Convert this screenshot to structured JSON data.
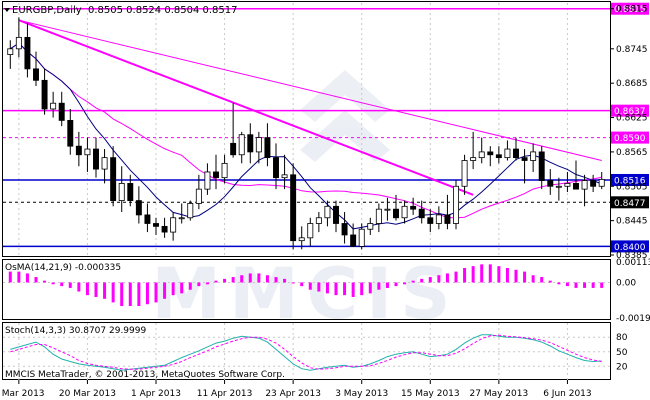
{
  "window": {
    "symbol_label": "EURGBP,Daily",
    "ohlc": "0.8505 0.8524 0.8504 0.8517",
    "copyright": "MMCIS MetaTrader, © 2001-2013, MetaQuotes Software Corp.",
    "watermark": "MMCIS"
  },
  "main_axis": {
    "ticks": [
      "0.8815",
      "0.8745",
      "0.8685",
      "0.8625",
      "0.8565",
      "0.8505",
      "0.8445",
      "0.8385"
    ],
    "levels": [
      {
        "value": "0.8815",
        "color": "#ff00ff",
        "style": "solid"
      },
      {
        "value": "0.8637",
        "color": "#ff00ff",
        "style": "solid"
      },
      {
        "value": "0.8590",
        "color": "#ff00ff",
        "style": "dashed"
      },
      {
        "value": "0.8516",
        "color": "#0000cc",
        "style": "solid"
      },
      {
        "value": "0.8477",
        "color": "#000000",
        "style": "dashed"
      },
      {
        "value": "0.8400",
        "color": "#0000cc",
        "style": "solid"
      }
    ]
  },
  "osma": {
    "label": "OsMA(14,21,9) -0.000335",
    "ticks": [
      "0.00113",
      "0.00",
      "-0.00196"
    ]
  },
  "stoch": {
    "label": "Stoch(14,3,3) 30.8707 29.9999",
    "ticks": [
      "80",
      "50",
      "20"
    ]
  },
  "x_axis": {
    "labels": [
      "8 Mar 2013",
      "20 Mar 2013",
      "1 Apr 2013",
      "11 Apr 2013",
      "23 Apr 2013",
      "3 May 2013",
      "15 May 2013",
      "27 May 2013",
      "6 Jun 2013"
    ]
  },
  "colors": {
    "bull": "#ffffff",
    "bear": "#000000",
    "ma_fast": "#000080",
    "ma_slow": "#ff00ff",
    "trendline": "#ff00ff",
    "osma": "#ff00ff",
    "stoch_main": "#20b2aa",
    "stoch_signal": "#ff00ff"
  },
  "chart_data": [
    {
      "type": "candlestick",
      "title": "EURGBP,Daily",
      "x": [
        "7 Mar",
        "8 Mar",
        "11 Mar",
        "12 Mar",
        "13 Mar",
        "14 Mar",
        "15 Mar",
        "18 Mar",
        "19 Mar",
        "20 Mar",
        "21 Mar",
        "22 Mar",
        "25 Mar",
        "26 Mar",
        "27 Mar",
        "28 Mar",
        "29 Mar",
        "1 Apr",
        "2 Apr",
        "3 Apr",
        "4 Apr",
        "5 Apr",
        "8 Apr",
        "9 Apr",
        "10 Apr",
        "11 Apr",
        "12 Apr",
        "15 Apr",
        "16 Apr",
        "17 Apr",
        "18 Apr",
        "19 Apr",
        "22 Apr",
        "23 Apr",
        "24 Apr",
        "25 Apr",
        "26 Apr",
        "29 Apr",
        "30 Apr",
        "1 May",
        "2 May",
        "3 May",
        "6 May",
        "7 May",
        "8 May",
        "9 May",
        "10 May",
        "13 May",
        "14 May",
        "15 May",
        "16 May",
        "17 May",
        "20 May",
        "21 May",
        "22 May",
        "23 May",
        "24 May",
        "27 May",
        "28 May",
        "29 May",
        "30 May",
        "31 May",
        "3 Jun",
        "4 Jun",
        "5 Jun",
        "6 Jun",
        "7 Jun",
        "10 Jun",
        "11 Jun",
        "12 Jun"
      ],
      "open": [
        0.8735,
        0.8745,
        0.8765,
        0.871,
        0.869,
        0.864,
        0.865,
        0.862,
        0.8575,
        0.856,
        0.857,
        0.8535,
        0.8555,
        0.848,
        0.851,
        0.848,
        0.8455,
        0.844,
        0.8435,
        0.8425,
        0.845,
        0.845,
        0.8475,
        0.85,
        0.853,
        0.852,
        0.858,
        0.856,
        0.8595,
        0.8565,
        0.859,
        0.8555,
        0.852,
        0.8525,
        0.841,
        0.8415,
        0.844,
        0.845,
        0.847,
        0.844,
        0.842,
        0.84,
        0.843,
        0.844,
        0.8465,
        0.8465,
        0.845,
        0.847,
        0.8465,
        0.845,
        0.844,
        0.8455,
        0.844,
        0.8505,
        0.855,
        0.8555,
        0.8565,
        0.856,
        0.8555,
        0.857,
        0.8555,
        0.855,
        0.8565,
        0.8515,
        0.8505,
        0.8505,
        0.851,
        0.85,
        0.8515,
        0.8505
      ],
      "high": [
        0.876,
        0.88,
        0.879,
        0.874,
        0.871,
        0.867,
        0.867,
        0.864,
        0.86,
        0.859,
        0.859,
        0.857,
        0.8575,
        0.854,
        0.8525,
        0.8505,
        0.8475,
        0.845,
        0.845,
        0.846,
        0.8475,
        0.848,
        0.8525,
        0.8545,
        0.856,
        0.856,
        0.865,
        0.86,
        0.8615,
        0.86,
        0.8615,
        0.858,
        0.856,
        0.8545,
        0.8435,
        0.845,
        0.846,
        0.848,
        0.848,
        0.846,
        0.844,
        0.844,
        0.845,
        0.8475,
        0.8485,
        0.849,
        0.848,
        0.8485,
        0.848,
        0.8465,
        0.847,
        0.849,
        0.8515,
        0.856,
        0.86,
        0.859,
        0.8575,
        0.8575,
        0.8585,
        0.859,
        0.857,
        0.858,
        0.8575,
        0.8535,
        0.852,
        0.853,
        0.855,
        0.8525,
        0.8525,
        0.853
      ],
      "low": [
        0.871,
        0.873,
        0.8695,
        0.868,
        0.863,
        0.8625,
        0.861,
        0.856,
        0.854,
        0.853,
        0.852,
        0.851,
        0.847,
        0.846,
        0.847,
        0.844,
        0.8425,
        0.842,
        0.8415,
        0.841,
        0.844,
        0.8445,
        0.8465,
        0.849,
        0.85,
        0.851,
        0.8555,
        0.8545,
        0.8545,
        0.8545,
        0.854,
        0.85,
        0.85,
        0.8395,
        0.8395,
        0.84,
        0.8425,
        0.8435,
        0.8425,
        0.8405,
        0.84,
        0.8395,
        0.842,
        0.8425,
        0.8445,
        0.8445,
        0.844,
        0.8455,
        0.844,
        0.8425,
        0.843,
        0.843,
        0.843,
        0.849,
        0.8535,
        0.8545,
        0.854,
        0.8545,
        0.855,
        0.855,
        0.851,
        0.853,
        0.85,
        0.849,
        0.848,
        0.8495,
        0.85,
        0.847,
        0.8495,
        0.85
      ],
      "close": [
        0.8745,
        0.8765,
        0.871,
        0.869,
        0.864,
        0.865,
        0.862,
        0.8575,
        0.856,
        0.857,
        0.8535,
        0.8555,
        0.848,
        0.851,
        0.848,
        0.8455,
        0.844,
        0.8435,
        0.8425,
        0.845,
        0.845,
        0.8475,
        0.85,
        0.853,
        0.852,
        0.8545,
        0.856,
        0.8595,
        0.8565,
        0.859,
        0.8555,
        0.852,
        0.8525,
        0.841,
        0.8415,
        0.844,
        0.845,
        0.847,
        0.844,
        0.842,
        0.84,
        0.843,
        0.844,
        0.8465,
        0.8465,
        0.845,
        0.847,
        0.8465,
        0.845,
        0.844,
        0.8455,
        0.844,
        0.8505,
        0.855,
        0.8555,
        0.8565,
        0.856,
        0.8555,
        0.857,
        0.8555,
        0.855,
        0.8565,
        0.8515,
        0.8505,
        0.8505,
        0.851,
        0.85,
        0.8515,
        0.8505,
        0.8517
      ],
      "y_range": [
        0.8385,
        0.8825
      ],
      "trendlines": [
        {
          "from": [
            "8 Mar",
            0.8795
          ],
          "to": [
            "22 May",
            0.849
          ],
          "color": "#ff00ff",
          "width": 2
        },
        {
          "from": [
            "8 Mar",
            0.8795
          ],
          "to": [
            "12 Jun",
            0.855
          ],
          "color": "#ff00ff",
          "width": 1
        }
      ]
    },
    {
      "type": "bar",
      "title": "OsMA(14,21,9) -0.000335",
      "values": [
        0.0006,
        0.0006,
        0.0005,
        0.0003,
        0.0001,
        -0.0001,
        -0.0002,
        -0.0003,
        -0.0005,
        -0.0007,
        -0.0008,
        -0.0009,
        -0.0011,
        -0.0013,
        -0.0013,
        -0.0013,
        -0.0012,
        -0.0011,
        -0.0009,
        -0.0007,
        -0.0006,
        -0.0004,
        -0.0002,
        -0.0001,
        0.0001,
        0.0002,
        0.0003,
        0.0004,
        0.0005,
        0.0005,
        0.0004,
        0.0003,
        0.0002,
        0.0,
        -0.0002,
        -0.0004,
        -0.0005,
        -0.0006,
        -0.0007,
        -0.0007,
        -0.0008,
        -0.0007,
        -0.0006,
        -0.0004,
        -0.0003,
        -0.0002,
        -0.0001,
        0.0001,
        0.0002,
        0.0003,
        0.0004,
        0.0005,
        0.0006,
        0.0008,
        0.0009,
        0.001,
        0.001,
        0.0009,
        0.0008,
        0.0007,
        0.0006,
        0.0004,
        0.0003,
        0.0001,
        -0.0001,
        -0.0002,
        -0.0003,
        -0.0003,
        -0.0003,
        -0.0003
      ],
      "y_range": [
        -0.00196,
        0.00113
      ]
    },
    {
      "type": "line",
      "title": "Stoch(14,3,3) 30.8707 29.9999",
      "series": [
        {
          "name": "main",
          "values": [
            55,
            60,
            65,
            70,
            60,
            45,
            35,
            30,
            25,
            22,
            20,
            18,
            15,
            12,
            14,
            16,
            18,
            20,
            22,
            30,
            38,
            45,
            52,
            60,
            68,
            72,
            78,
            82,
            80,
            78,
            70,
            55,
            40,
            25,
            15,
            12,
            15,
            18,
            20,
            22,
            18,
            20,
            25,
            32,
            40,
            45,
            48,
            50,
            45,
            40,
            42,
            45,
            55,
            68,
            78,
            85,
            85,
            82,
            80,
            80,
            78,
            75,
            70,
            62,
            52,
            45,
            38,
            32,
            30,
            31
          ]
        },
        {
          "name": "signal",
          "values": [
            50,
            55,
            60,
            65,
            65,
            58,
            50,
            42,
            32,
            26,
            22,
            20,
            18,
            15,
            14,
            14,
            16,
            18,
            20,
            24,
            30,
            38,
            45,
            52,
            60,
            66,
            72,
            77,
            80,
            80,
            76,
            68,
            55,
            40,
            27,
            17,
            14,
            15,
            17,
            20,
            20,
            20,
            21,
            26,
            32,
            39,
            44,
            48,
            48,
            45,
            42,
            42,
            47,
            56,
            67,
            77,
            83,
            84,
            82,
            81,
            79,
            77,
            74,
            69,
            61,
            53,
            45,
            38,
            33,
            30
          ]
        }
      ],
      "y_range": [
        0,
        100
      ]
    }
  ]
}
